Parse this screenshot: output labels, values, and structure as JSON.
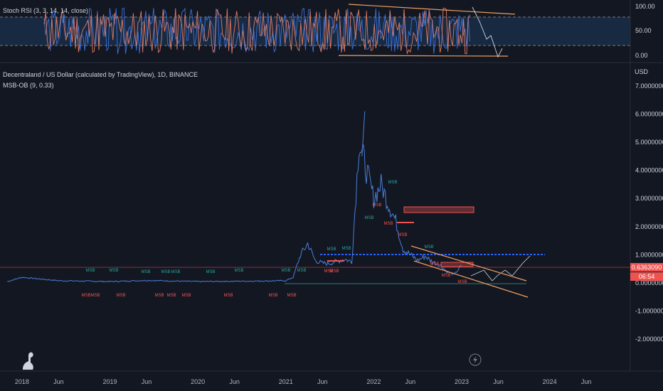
{
  "rsi_panel": {
    "title": "Stoch RSI (3, 3, 14, 14, close)",
    "axis_labels": [
      "100.00",
      "50.00",
      "0.00"
    ]
  },
  "main_panel": {
    "title": "Decentraland / US Dollar (calculated by TradingView), 1D, BINANCE",
    "indicator": "MSB-OB (9, 0.33)",
    "currency": "USD",
    "price_tag": "0.6363090",
    "countdown": "06:54"
  },
  "time_axis": [
    "2018",
    "Jun",
    "2019",
    "Jun",
    "2020",
    "Jun",
    "2021",
    "Jun",
    "2022",
    "Jun",
    "2023",
    "Jun",
    "2024",
    "Jun"
  ],
  "colors": {
    "background": "#131722",
    "price_line": "#4a7ed8",
    "rsi_k": "#e07a5f",
    "rsi_d": "#3a6fd8",
    "channel": "#f0a060",
    "up_label": "#26a69a",
    "down_label": "#ef5350"
  },
  "icons": [
    "tradingview-logo-icon",
    "lightning-icon"
  ],
  "chart_data": [
    {
      "type": "line",
      "title": "",
      "series": [
        {
          "name": "Stoch RSI"
        }
      ],
      "ylim": [
        0,
        100
      ],
      "y_ticks": [
        100,
        50,
        0
      ],
      "grid": false
    },
    {
      "type": "line",
      "title": "Decentraland / US Dollar",
      "ylabel": "USD",
      "ylim": [
        -2,
        7
      ],
      "y_ticks": [
        7,
        6,
        5,
        4,
        3,
        2,
        1,
        0,
        -1,
        -2
      ],
      "y_tick_labels": [
        "7.0000000",
        "6.0000000",
        "5.0000000",
        "4.0000000",
        "3.0000000",
        "2.0000000",
        "1.0000000",
        "0.0000000",
        "-1.0000000",
        "-2.0000000"
      ],
      "x_range": [
        "2017-10",
        "2024-12"
      ],
      "x": [
        "2017-11",
        "2018-01",
        "2018-06",
        "2019-01",
        "2019-06",
        "2020-01",
        "2020-06",
        "2021-01",
        "2021-02",
        "2021-03",
        "2021-04",
        "2021-05",
        "2021-06",
        "2021-07",
        "2021-09",
        "2021-10",
        "2021-11",
        "2021-12",
        "2022-01",
        "2022-02",
        "2022-03",
        "2022-04",
        "2022-05",
        "2022-06",
        "2022-07",
        "2022-08",
        "2022-09",
        "2022-10",
        "2022-11",
        "2022-12",
        "2023-01"
      ],
      "values": [
        0.05,
        0.2,
        0.08,
        0.05,
        0.09,
        0.05,
        0.06,
        0.08,
        0.2,
        1.0,
        1.4,
        0.8,
        0.7,
        0.7,
        0.85,
        0.75,
        5.0,
        4.0,
        3.0,
        3.5,
        2.8,
        2.2,
        1.2,
        1.0,
        0.8,
        0.95,
        0.75,
        0.65,
        0.4,
        0.3,
        0.64
      ],
      "last_price": 0.636309,
      "reference_level": 1.0,
      "up_labels": [
        "MSB",
        "MSB",
        "MSB",
        "MSB",
        "MSB",
        "MSB",
        "MSB",
        "MSB",
        "MSB",
        "MSB",
        "MSB",
        "MSB",
        "MSB",
        "MSB"
      ],
      "down_labels": [
        "MSB",
        "MSB",
        "MSB",
        "MSB",
        "MSB",
        "MSB",
        "MSB",
        "MSB",
        "MSB",
        "MSB",
        "MSB",
        "MSB",
        "MSB",
        "MSB",
        "MSB",
        "MSB",
        "MSB"
      ]
    }
  ]
}
